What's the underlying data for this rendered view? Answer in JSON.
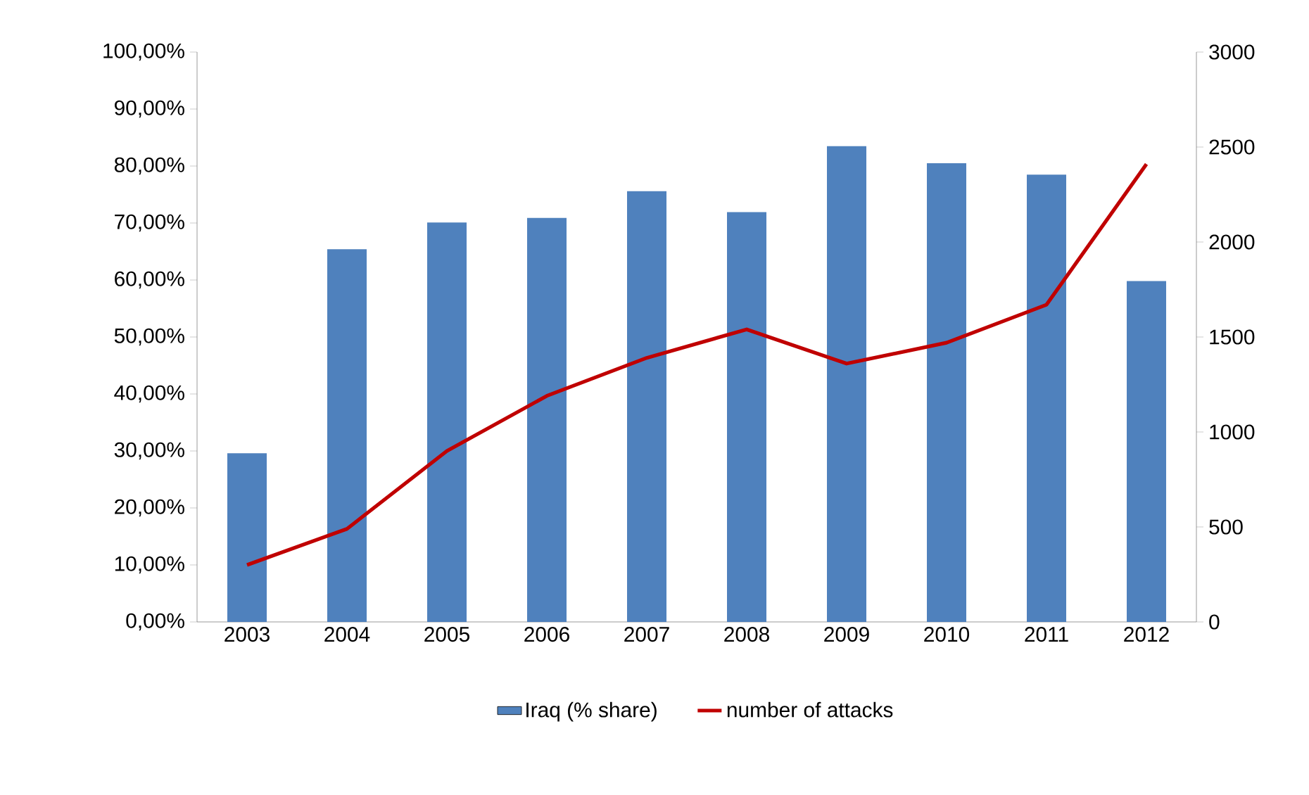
{
  "chart_data": {
    "type": "bar",
    "categories": [
      "2003",
      "2004",
      "2005",
      "2006",
      "2007",
      "2008",
      "2009",
      "2010",
      "2011",
      "2012"
    ],
    "series": [
      {
        "name": "Iraq (% share)",
        "color": "#4f81bd",
        "values": [
          29.6,
          65.4,
          70.1,
          70.9,
          75.6,
          71.9,
          83.5,
          80.5,
          78.5,
          59.8
        ]
      },
      {
        "name": "number of attacks",
        "type": "line",
        "axis": "y2",
        "color": "#c00000",
        "values": [
          300,
          490,
          900,
          1190,
          1390,
          1540,
          1360,
          1470,
          1670,
          2410
        ]
      }
    ],
    "ylim": [
      0,
      100
    ],
    "yticks": [
      {
        "value": 0,
        "label": "0,00%"
      },
      {
        "value": 10,
        "label": "10,00%"
      },
      {
        "value": 20,
        "label": "20,00%"
      },
      {
        "value": 30,
        "label": "30,00%"
      },
      {
        "value": 40,
        "label": "40,00%"
      },
      {
        "value": 50,
        "label": "50,00%"
      },
      {
        "value": 60,
        "label": "60,00%"
      },
      {
        "value": 70,
        "label": "70,00%"
      },
      {
        "value": 80,
        "label": "80,00%"
      },
      {
        "value": 90,
        "label": "90,00%"
      },
      {
        "value": 100,
        "label": "100,00%"
      }
    ],
    "y2lim": [
      0,
      3000
    ],
    "y2ticks": [
      0,
      500,
      1000,
      1500,
      2000,
      2500,
      3000
    ],
    "legend": "bottom"
  }
}
